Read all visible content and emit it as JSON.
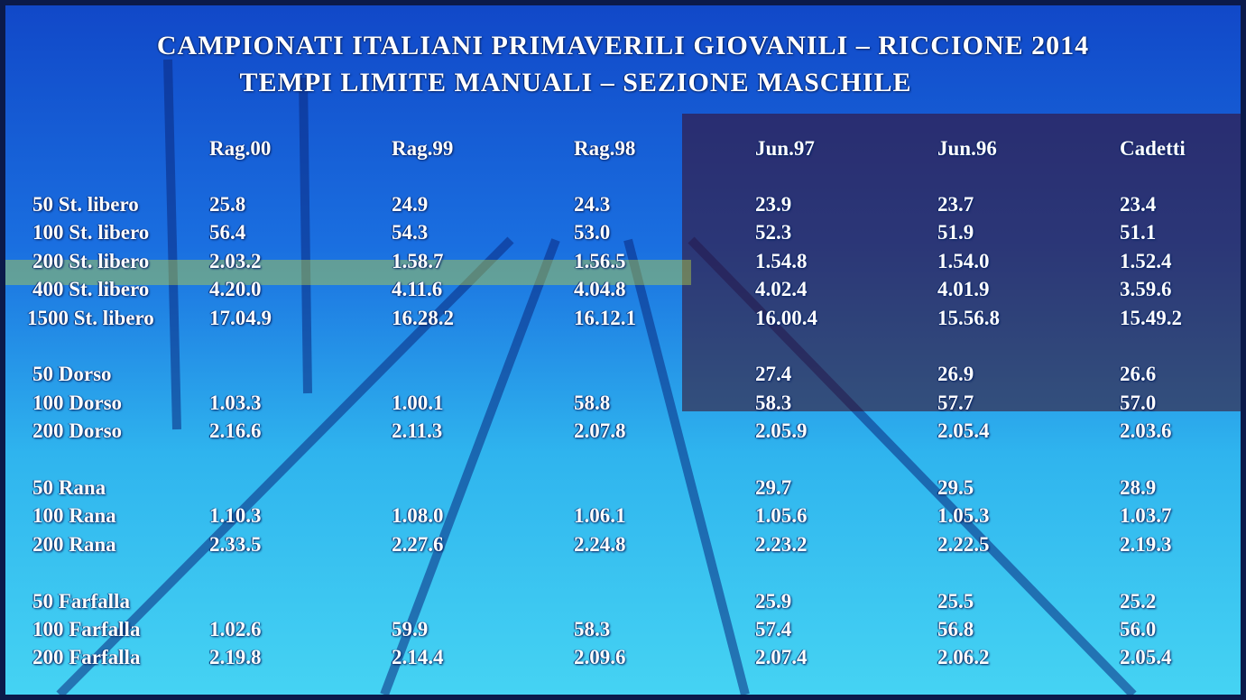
{
  "title": [
    "CAMPIONATI ITALIANI PRIMAVERILI GIOVANILI – RICCIONE 2014",
    "TEMPI LIMITE MANUALI – SEZIONE MASCHILE"
  ],
  "table": {
    "columns": [
      "Rag.00",
      "Rag.99",
      "Rag.98",
      "Jun.97",
      "Jun.96",
      "Cadetti"
    ],
    "groups": [
      [
        [
          "50 St. libero",
          "25.8",
          "24.9",
          "24.3",
          "23.9",
          "23.7",
          "23.4"
        ],
        [
          "100 St. libero",
          "56.4",
          "54.3",
          "53.0",
          "52.3",
          "51.9",
          "51.1"
        ],
        [
          "200 St. libero",
          "2.03.2",
          "1.58.7",
          "1.56.5",
          "1.54.8",
          "1.54.0",
          "1.52.4"
        ],
        [
          "400 St. libero",
          "4.20.0",
          "4.11.6",
          "4.04.8",
          "4.02.4",
          "4.01.9",
          "3.59.6"
        ],
        [
          "1500 St. libero",
          "17.04.9",
          "16.28.2",
          "16.12.1",
          "16.00.4",
          "15.56.8",
          "15.49.2"
        ]
      ],
      [
        [
          "50 Dorso",
          null,
          null,
          null,
          "27.4",
          "26.9",
          "26.6"
        ],
        [
          "100 Dorso",
          "1.03.3",
          "1.00.1",
          "58.8",
          "58.3",
          "57.7",
          "57.0"
        ],
        [
          "200 Dorso",
          "2.16.6",
          "2.11.3",
          "2.07.8",
          "2.05.9",
          "2.05.4",
          "2.03.6"
        ]
      ],
      [
        [
          "50 Rana",
          null,
          null,
          null,
          "29.7",
          "29.5",
          "28.9"
        ],
        [
          "100 Rana",
          "1.10.3",
          "1.08.0",
          "1.06.1",
          "1.05.6",
          "1.05.3",
          "1.03.7"
        ],
        [
          "200 Rana",
          "2.33.5",
          "2.27.6",
          "2.24.8",
          "2.23.2",
          "2.22.5",
          "2.19.3"
        ]
      ],
      [
        [
          "50 Farfalla",
          null,
          null,
          null,
          "25.9",
          "25.5",
          "25.2"
        ],
        [
          "100 Farfalla",
          "1.02.6",
          "59.9",
          "58.3",
          "57.4",
          "56.8",
          "56.0"
        ],
        [
          "200 Farfalla",
          "2.19.8",
          "2.14.4",
          "2.09.6",
          "2.07.4",
          "2.06.2",
          "2.05.4"
        ]
      ]
    ]
  }
}
